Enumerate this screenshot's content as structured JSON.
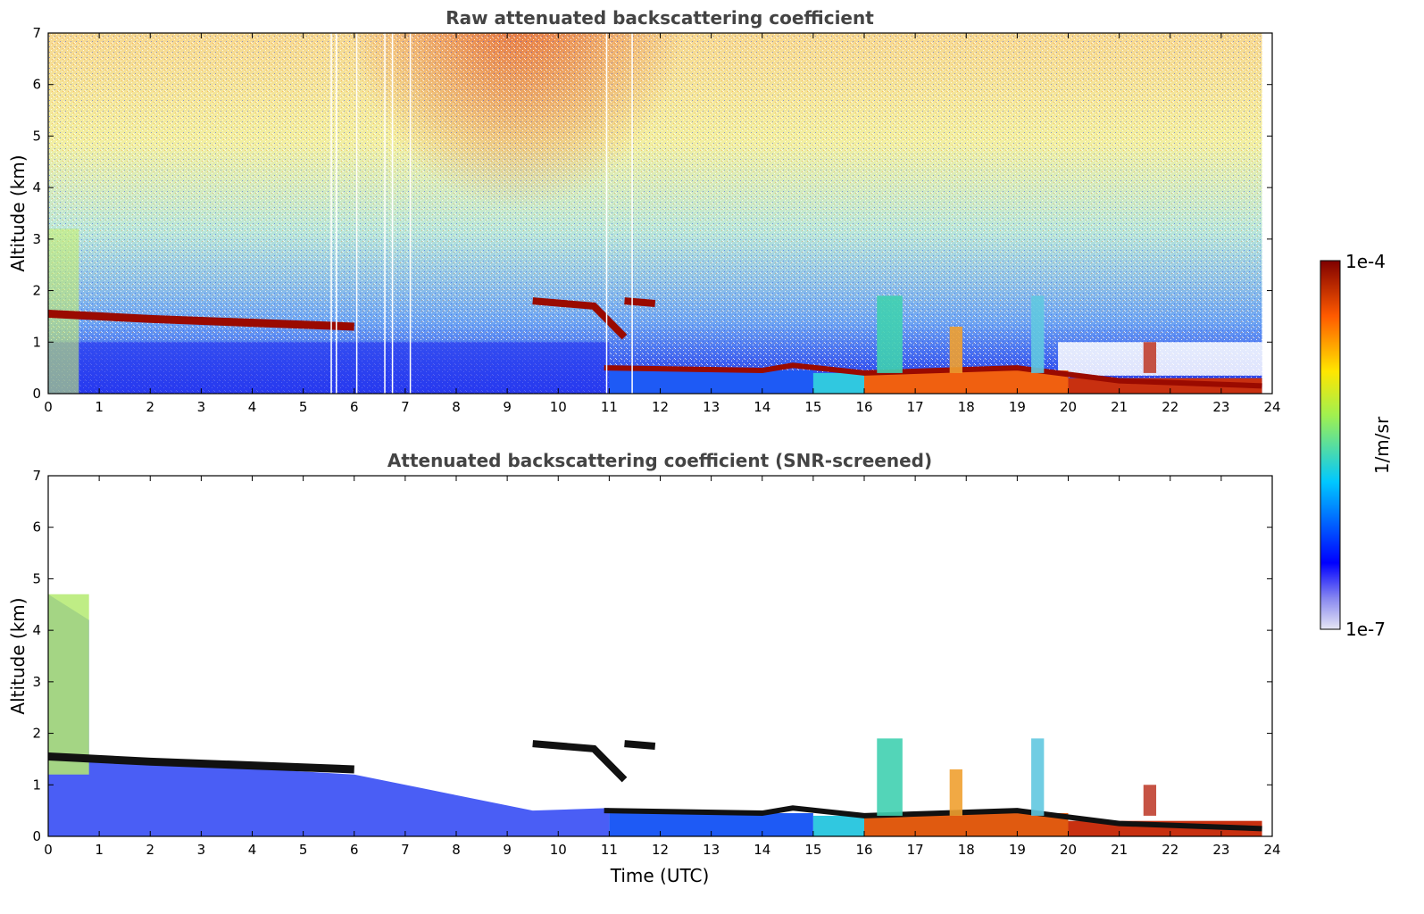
{
  "chart_data": [
    {
      "type": "heatmap",
      "title": "Raw attenuated backscattering coefficient",
      "xlabel": "",
      "ylabel": "Altitude (km)",
      "xlim": [
        0,
        24
      ],
      "ylim": [
        0,
        7
      ],
      "xticks": [
        "0",
        "1",
        "2",
        "3",
        "4",
        "5",
        "6",
        "7",
        "8",
        "9",
        "10",
        "11",
        "12",
        "13",
        "14",
        "15",
        "16",
        "17",
        "18",
        "19",
        "20",
        "21",
        "22",
        "23",
        "24"
      ],
      "yticks": [
        "0",
        "1",
        "2",
        "3",
        "4",
        "5",
        "6",
        "7"
      ],
      "features": [
        {
          "name": "aerosol layer",
          "t_start": 0.0,
          "t_end": 6.0,
          "alt_start_km": 1.55,
          "alt_end_km": 1.3
        },
        {
          "name": "elevated layer",
          "t_start": 9.5,
          "t_end": 11.9,
          "alt_start_km": 1.8,
          "alt_end_km": 1.2
        },
        {
          "name": "boundary layer top",
          "t_start": 10.9,
          "t_end": 23.8,
          "alt_start_km": 0.5,
          "alt_end_km": 0.15
        },
        {
          "name": "convective plumes",
          "times": [
            16.5,
            17.8,
            19.4,
            21.6
          ],
          "max_alt_km": [
            1.9,
            1.3,
            1.9,
            1.0
          ]
        }
      ]
    },
    {
      "type": "heatmap",
      "title": "Attenuated backscattering coefficient (SNR-screened)",
      "xlabel": "Time (UTC)",
      "ylabel": "Altitude (km)",
      "xlim": [
        0,
        24
      ],
      "ylim": [
        0,
        7
      ],
      "xticks": [
        "0",
        "1",
        "2",
        "3",
        "4",
        "5",
        "6",
        "7",
        "8",
        "9",
        "10",
        "11",
        "12",
        "13",
        "14",
        "15",
        "16",
        "17",
        "18",
        "19",
        "20",
        "21",
        "22",
        "23",
        "24"
      ],
      "yticks": [
        "0",
        "1",
        "2",
        "3",
        "4",
        "5",
        "6",
        "7"
      ]
    }
  ],
  "colorbar": {
    "label": "1/m/sr",
    "max_label": "1e-4",
    "min_label": "1e-7",
    "scale": "log",
    "colors": [
      "#e6e6f5",
      "#0000ff",
      "#00c8ff",
      "#a0f050",
      "#ffe600",
      "#ff5a00",
      "#7f0000"
    ]
  }
}
